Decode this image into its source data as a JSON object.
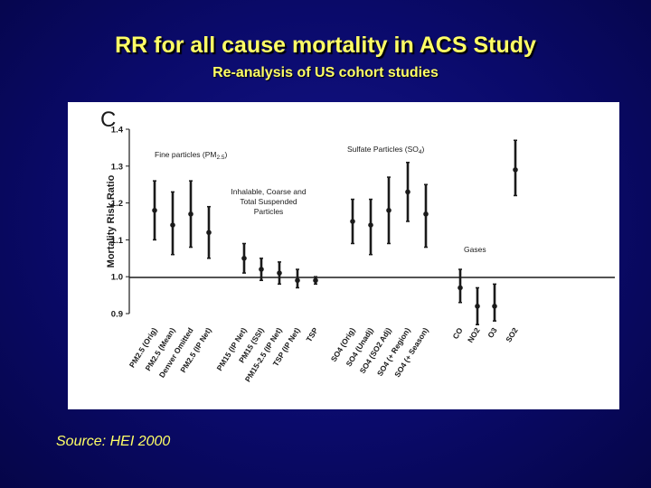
{
  "slide": {
    "title": "RR for all cause mortality in ACS Study",
    "subtitle": "Re-analysis of US cohort studies",
    "source": "Source: HEI 2000"
  },
  "colors": {
    "background": "#0a0a6a",
    "text": "#ffff66",
    "panel": "#ffffff",
    "ink": "#1a1a1a"
  },
  "chart_data": {
    "type": "scatter",
    "panel_label": "C",
    "ylabel": "Mortality Risk Ratio",
    "ylim": [
      0.9,
      1.4
    ],
    "yticks": [
      "0.9",
      "1.0",
      "1.1",
      "1.2",
      "1.3",
      "1.4"
    ],
    "reference_line": 1.0,
    "annotations": {
      "fine": "Fine particles (PM2.5)",
      "sulfate": "Sulfate Particles (SO4)",
      "inhalable": [
        "Inhalable, Coarse and",
        "Total Suspended",
        "Particles"
      ],
      "gases": "Gases"
    },
    "points": [
      {
        "label": "PM2.5 (Orig)",
        "rr": 1.18,
        "lo": 1.1,
        "hi": 1.26
      },
      {
        "label": "PM2.5 (Mean)",
        "rr": 1.14,
        "lo": 1.06,
        "hi": 1.23
      },
      {
        "label": "Denver Omitted",
        "rr": 1.17,
        "lo": 1.08,
        "hi": 1.26
      },
      {
        "label": "PM2.5 (IP Net)",
        "rr": 1.12,
        "lo": 1.05,
        "hi": 1.19
      },
      {
        "label": "PM15 (IP Net)",
        "rr": 1.05,
        "lo": 1.01,
        "hi": 1.09
      },
      {
        "label": "PM15 (SSI)",
        "rr": 1.02,
        "lo": 0.99,
        "hi": 1.05
      },
      {
        "label": "PM15-2.5 (IP Net)",
        "rr": 1.01,
        "lo": 0.98,
        "hi": 1.04
      },
      {
        "label": "TSP (IP Net)",
        "rr": 0.99,
        "lo": 0.97,
        "hi": 1.02
      },
      {
        "label": "TSP",
        "rr": 0.99,
        "lo": 0.98,
        "hi": 1.0
      },
      {
        "label": "SO4 (Orig)",
        "rr": 1.15,
        "lo": 1.09,
        "hi": 1.21
      },
      {
        "label": "SO4 (Unadj)",
        "rr": 1.14,
        "lo": 1.06,
        "hi": 1.21
      },
      {
        "label": "SO4 (SO2 Adj)",
        "rr": 1.18,
        "lo": 1.09,
        "hi": 1.27
      },
      {
        "label": "SO4 (+ Region)",
        "rr": 1.23,
        "lo": 1.15,
        "hi": 1.31
      },
      {
        "label": "SO4 (+ Season)",
        "rr": 1.17,
        "lo": 1.08,
        "hi": 1.25
      },
      {
        "label": "CO",
        "rr": 0.97,
        "lo": 0.93,
        "hi": 1.02
      },
      {
        "label": "NO2",
        "rr": 0.92,
        "lo": 0.87,
        "hi": 0.97
      },
      {
        "label": "O3",
        "rr": 0.92,
        "lo": 0.88,
        "hi": 0.98
      },
      {
        "label": "SO2",
        "rr": 1.29,
        "lo": 1.22,
        "hi": 1.37
      }
    ]
  }
}
